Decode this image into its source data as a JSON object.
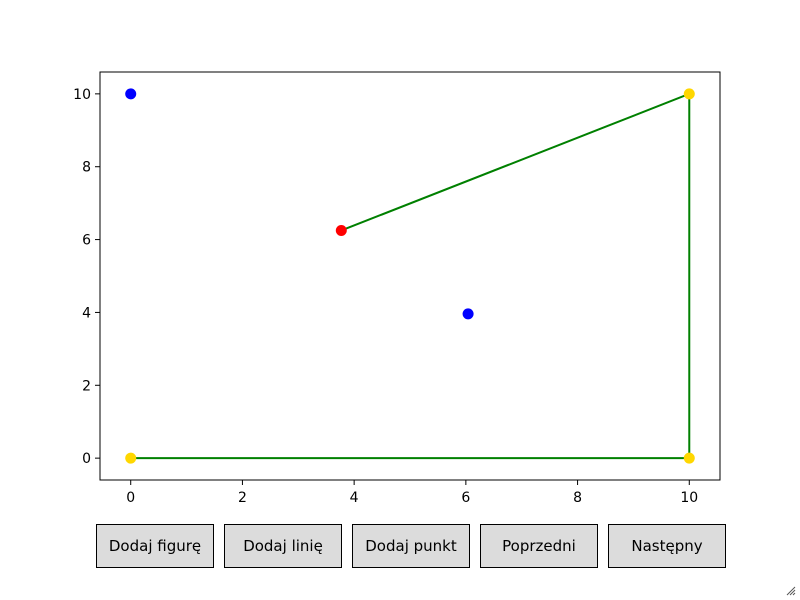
{
  "chart_data": {
    "type": "scatter",
    "xlim": [
      -0.55,
      10.55
    ],
    "ylim": [
      -0.6,
      10.6
    ],
    "x_ticks": [
      0,
      2,
      4,
      6,
      8,
      10
    ],
    "y_ticks": [
      0,
      2,
      4,
      6,
      8,
      10
    ],
    "grid": false,
    "lines": [
      {
        "color": "#008000",
        "points": [
          [
            0,
            0
          ],
          [
            10,
            0
          ],
          [
            10,
            10
          ],
          [
            3.77,
            6.25
          ]
        ]
      }
    ],
    "points": [
      {
        "x": 0,
        "y": 10,
        "color": "#0000ff"
      },
      {
        "x": 6.04,
        "y": 3.96,
        "color": "#0000ff"
      },
      {
        "x": 0,
        "y": 0,
        "color": "#ffd700"
      },
      {
        "x": 10,
        "y": 0,
        "color": "#ffd700"
      },
      {
        "x": 10,
        "y": 10,
        "color": "#ffd700"
      },
      {
        "x": 3.77,
        "y": 6.25,
        "color": "#ff0000"
      }
    ]
  },
  "buttons": {
    "add_figure": "Dodaj figurę",
    "add_line": "Dodaj linię",
    "add_point": "Dodaj punkt",
    "previous": "Poprzedni",
    "next": "Następny"
  },
  "icons": {
    "resize_grip": "resize-grip-icon"
  }
}
